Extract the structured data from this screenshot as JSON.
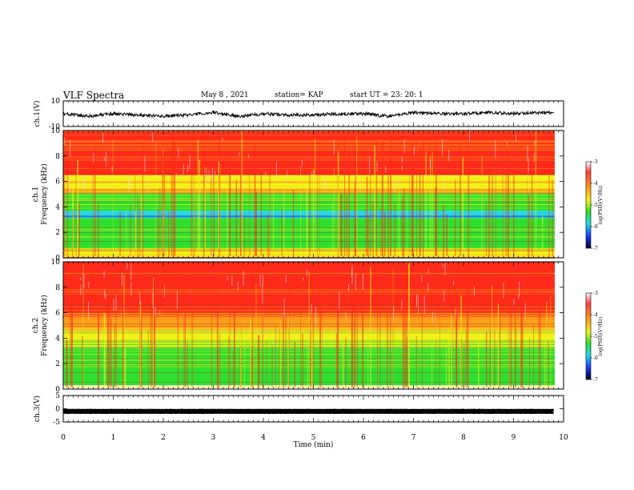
{
  "header": {
    "title": "VLF Spectra",
    "date": "May 8  , 2021",
    "station": "station= KAP",
    "start": "start  UT  =   23: 20: 1"
  },
  "chart_data": [
    {
      "type": "line",
      "panel": "ch1-waveform",
      "ylabel": "ch.1(V)",
      "ylim": [
        -10,
        10
      ],
      "yticks": [
        "10",
        "-10"
      ],
      "x": [
        0,
        0.5,
        1,
        1.5,
        2,
        2.5,
        3,
        3.5,
        4,
        4.5,
        5,
        5.5,
        6,
        6.5,
        7,
        7.5,
        8,
        8.5,
        9,
        9.5,
        9.8
      ],
      "values": [
        0,
        -2,
        0,
        -1,
        -2,
        -1,
        1,
        -2,
        0,
        -1,
        -1,
        0,
        0,
        -2,
        1,
        0,
        0,
        1,
        0,
        1,
        1
      ]
    },
    {
      "type": "heatmap",
      "panel": "ch1-spectrogram",
      "ylabel": "ch.1\nFrequency (kHz)",
      "ylim": [
        0,
        10
      ],
      "yticks": [
        "0",
        "2",
        "4",
        "6",
        "8",
        "10"
      ],
      "bands": [
        {
          "from": 0,
          "to": 0.7,
          "level": "yellow-red"
        },
        {
          "from": 0.7,
          "to": 2.3,
          "level": "green"
        },
        {
          "from": 2.3,
          "to": 3.1,
          "level": "green-cyan"
        },
        {
          "from": 3.1,
          "to": 3.7,
          "level": "cyan-blue"
        },
        {
          "from": 3.7,
          "to": 5.1,
          "level": "green"
        },
        {
          "from": 5.1,
          "to": 6.5,
          "level": "yellow-orange"
        },
        {
          "from": 6.5,
          "to": 10,
          "level": "orange-red"
        }
      ],
      "colorbar": {
        "label": "log(PSD)(V²/Hz)",
        "ticks": [
          "-3",
          "-4",
          "-5",
          "-6",
          "-7"
        ]
      }
    },
    {
      "type": "heatmap",
      "panel": "ch2-spectrogram",
      "ylabel": "ch.2\nFrequency (kHz)",
      "ylim": [
        0,
        10
      ],
      "yticks": [
        "0",
        "2",
        "4",
        "6",
        "8",
        "10"
      ],
      "bands": [
        {
          "from": 0,
          "to": 0.3,
          "level": "white-yellow"
        },
        {
          "from": 0.3,
          "to": 3.2,
          "level": "green"
        },
        {
          "from": 3.2,
          "to": 4.6,
          "level": "yellow-green"
        },
        {
          "from": 4.6,
          "to": 6.0,
          "level": "orange"
        },
        {
          "from": 6.0,
          "to": 10,
          "level": "red"
        }
      ],
      "colorbar": {
        "label": "log(PSD)(V²/Hz)",
        "ticks": [
          "-3",
          "-4",
          "-5",
          "-6",
          "-7"
        ]
      }
    },
    {
      "type": "line",
      "panel": "ch3-waveform",
      "ylabel": "ch.3(V)",
      "ylim": [
        -5,
        5
      ],
      "yticks": [
        "5",
        "0",
        "-5"
      ],
      "x": [
        0,
        9.8
      ],
      "values": [
        -1,
        -1
      ]
    }
  ],
  "xaxis": {
    "label": "Time  (min)",
    "range": [
      0,
      10
    ],
    "ticks": [
      "0",
      "1",
      "2",
      "3",
      "4",
      "5",
      "6",
      "7",
      "8",
      "9",
      "10"
    ]
  },
  "colors": {
    "red": "#ff2a1a",
    "orange": "#ff9a1a",
    "yellow": "#f2f21a",
    "green": "#2ee02e",
    "cyan": "#22d8e8",
    "blue": "#1a3cff"
  }
}
